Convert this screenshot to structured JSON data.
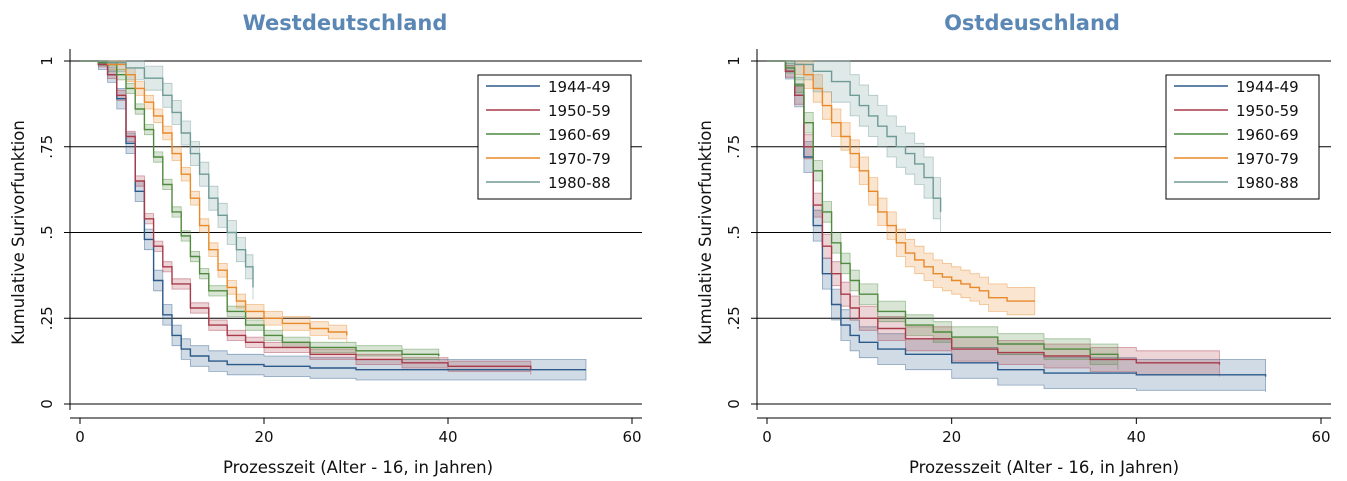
{
  "chart_data": [
    {
      "type": "line",
      "title": "Westdeutschland",
      "xlabel": "Prozesszeit (Alter - 16, in Jahren)",
      "ylabel": "Kumulative Surivorfunktion",
      "xlim": [
        0,
        60
      ],
      "ylim": [
        0,
        1
      ],
      "xticks": [
        "0",
        "20",
        "40",
        "60"
      ],
      "yticks": [
        "0",
        ".25",
        ".5",
        ".75",
        "1"
      ],
      "ytick_values": [
        0,
        0.25,
        0.5,
        0.75,
        1
      ],
      "xtick_values": [
        0,
        20,
        40,
        60
      ],
      "grid": "horizontal",
      "legend_position": "top-right",
      "series": [
        {
          "name": "1944-49",
          "color": "#2b5a8a",
          "ci_width": 0.03,
          "points": [
            [
              0,
              1
            ],
            [
              2,
              0.99
            ],
            [
              3,
              0.96
            ],
            [
              4,
              0.89
            ],
            [
              5,
              0.76
            ],
            [
              6,
              0.62
            ],
            [
              7,
              0.48
            ],
            [
              8,
              0.36
            ],
            [
              9,
              0.26
            ],
            [
              10,
              0.2
            ],
            [
              11,
              0.16
            ],
            [
              12,
              0.14
            ],
            [
              14,
              0.125
            ],
            [
              16,
              0.115
            ],
            [
              20,
              0.11
            ],
            [
              25,
              0.105
            ],
            [
              30,
              0.1
            ],
            [
              40,
              0.1
            ],
            [
              55,
              0.1
            ]
          ]
        },
        {
          "name": "1950-59",
          "color": "#a83a4a",
          "ci_width": 0.015,
          "points": [
            [
              0,
              1
            ],
            [
              2,
              0.99
            ],
            [
              3,
              0.96
            ],
            [
              4,
              0.9
            ],
            [
              5,
              0.78
            ],
            [
              6,
              0.65
            ],
            [
              7,
              0.54
            ],
            [
              8,
              0.46
            ],
            [
              9,
              0.4
            ],
            [
              10,
              0.35
            ],
            [
              12,
              0.28
            ],
            [
              14,
              0.23
            ],
            [
              16,
              0.2
            ],
            [
              18,
              0.18
            ],
            [
              20,
              0.165
            ],
            [
              25,
              0.145
            ],
            [
              30,
              0.13
            ],
            [
              35,
              0.12
            ],
            [
              40,
              0.11
            ],
            [
              49,
              0.1
            ]
          ]
        },
        {
          "name": "1960-69",
          "color": "#4f8a3f",
          "ci_width": 0.015,
          "points": [
            [
              0,
              1
            ],
            [
              2,
              0.995
            ],
            [
              4,
              0.96
            ],
            [
              5,
              0.92
            ],
            [
              6,
              0.86
            ],
            [
              7,
              0.8
            ],
            [
              8,
              0.72
            ],
            [
              9,
              0.64
            ],
            [
              10,
              0.56
            ],
            [
              11,
              0.49
            ],
            [
              12,
              0.43
            ],
            [
              13,
              0.38
            ],
            [
              14,
              0.33
            ],
            [
              16,
              0.27
            ],
            [
              18,
              0.23
            ],
            [
              20,
              0.2
            ],
            [
              22,
              0.18
            ],
            [
              25,
              0.165
            ],
            [
              30,
              0.155
            ],
            [
              35,
              0.145
            ],
            [
              39,
              0.14
            ]
          ]
        },
        {
          "name": "1970-79",
          "color": "#e8892a",
          "ci_width": 0.02,
          "points": [
            [
              0,
              1
            ],
            [
              3,
              0.99
            ],
            [
              5,
              0.96
            ],
            [
              6,
              0.92
            ],
            [
              7,
              0.88
            ],
            [
              8,
              0.84
            ],
            [
              9,
              0.79
            ],
            [
              10,
              0.73
            ],
            [
              11,
              0.67
            ],
            [
              12,
              0.6
            ],
            [
              13,
              0.52
            ],
            [
              14,
              0.45
            ],
            [
              15,
              0.39
            ],
            [
              16,
              0.34
            ],
            [
              17,
              0.3
            ],
            [
              18,
              0.27
            ],
            [
              20,
              0.25
            ],
            [
              22,
              0.235
            ],
            [
              25,
              0.22
            ],
            [
              27,
              0.21
            ],
            [
              29,
              0.2
            ]
          ]
        },
        {
          "name": "1980-88",
          "color": "#6f9a96",
          "ci_width": 0.035,
          "points": [
            [
              0,
              1
            ],
            [
              3,
              0.995
            ],
            [
              5,
              0.98
            ],
            [
              7,
              0.95
            ],
            [
              9,
              0.9
            ],
            [
              10,
              0.85
            ],
            [
              11,
              0.79
            ],
            [
              12,
              0.73
            ],
            [
              13,
              0.67
            ],
            [
              14,
              0.6
            ],
            [
              15,
              0.55
            ],
            [
              16,
              0.5
            ],
            [
              17,
              0.45
            ],
            [
              18,
              0.4
            ],
            [
              18.8,
              0.34
            ]
          ]
        }
      ]
    },
    {
      "type": "line",
      "title": "Ostdeuschland",
      "xlabel": "Prozesszeit (Alter - 16, in Jahren)",
      "ylabel": "Kumulative Surivorfunktion",
      "xlim": [
        0,
        60
      ],
      "ylim": [
        0,
        1
      ],
      "xticks": [
        "0",
        "20",
        "40",
        "60"
      ],
      "yticks": [
        "0",
        ".25",
        ".5",
        ".75",
        "1"
      ],
      "ytick_values": [
        0,
        0.25,
        0.5,
        0.75,
        1
      ],
      "xtick_values": [
        0,
        20,
        40,
        60
      ],
      "grid": "horizontal",
      "legend_position": "top-right",
      "series": [
        {
          "name": "1944-49",
          "color": "#2b5a8a",
          "ci_width": 0.045,
          "points": [
            [
              0,
              1
            ],
            [
              2,
              0.97
            ],
            [
              3,
              0.9
            ],
            [
              4,
              0.72
            ],
            [
              5,
              0.52
            ],
            [
              6,
              0.38
            ],
            [
              7,
              0.29
            ],
            [
              8,
              0.23
            ],
            [
              9,
              0.2
            ],
            [
              10,
              0.18
            ],
            [
              12,
              0.16
            ],
            [
              15,
              0.145
            ],
            [
              20,
              0.12
            ],
            [
              25,
              0.1
            ],
            [
              30,
              0.09
            ],
            [
              40,
              0.085
            ],
            [
              54,
              0.08
            ]
          ]
        },
        {
          "name": "1950-59",
          "color": "#a83a4a",
          "ci_width": 0.035,
          "points": [
            [
              0,
              1
            ],
            [
              2,
              0.97
            ],
            [
              3,
              0.9
            ],
            [
              4,
              0.75
            ],
            [
              5,
              0.58
            ],
            [
              6,
              0.46
            ],
            [
              7,
              0.38
            ],
            [
              8,
              0.32
            ],
            [
              9,
              0.28
            ],
            [
              10,
              0.25
            ],
            [
              12,
              0.22
            ],
            [
              15,
              0.19
            ],
            [
              20,
              0.16
            ],
            [
              25,
              0.15
            ],
            [
              30,
              0.14
            ],
            [
              35,
              0.13
            ],
            [
              40,
              0.12
            ],
            [
              49,
              0.115
            ]
          ]
        },
        {
          "name": "1960-69",
          "color": "#4f8a3f",
          "ci_width": 0.03,
          "points": [
            [
              0,
              1
            ],
            [
              2,
              0.98
            ],
            [
              3,
              0.93
            ],
            [
              4,
              0.82
            ],
            [
              5,
              0.68
            ],
            [
              6,
              0.56
            ],
            [
              7,
              0.47
            ],
            [
              8,
              0.41
            ],
            [
              9,
              0.36
            ],
            [
              10,
              0.32
            ],
            [
              12,
              0.27
            ],
            [
              15,
              0.23
            ],
            [
              18,
              0.21
            ],
            [
              20,
              0.195
            ],
            [
              25,
              0.175
            ],
            [
              30,
              0.16
            ],
            [
              35,
              0.145
            ],
            [
              38,
              0.13
            ]
          ]
        },
        {
          "name": "1970-79",
          "color": "#e8892a",
          "ci_width": 0.04,
          "points": [
            [
              0,
              1
            ],
            [
              3,
              0.99
            ],
            [
              4,
              0.96
            ],
            [
              5,
              0.92
            ],
            [
              6,
              0.87
            ],
            [
              7,
              0.82
            ],
            [
              8,
              0.78
            ],
            [
              9,
              0.73
            ],
            [
              10,
              0.68
            ],
            [
              11,
              0.62
            ],
            [
              12,
              0.56
            ],
            [
              13,
              0.52
            ],
            [
              14,
              0.47
            ],
            [
              15,
              0.44
            ],
            [
              16,
              0.42
            ],
            [
              17,
              0.4
            ],
            [
              18,
              0.38
            ],
            [
              19,
              0.37
            ],
            [
              20,
              0.36
            ],
            [
              21,
              0.35
            ],
            [
              22,
              0.34
            ],
            [
              23,
              0.33
            ],
            [
              24,
              0.31
            ],
            [
              26,
              0.3
            ],
            [
              29,
              0.3
            ]
          ]
        },
        {
          "name": "1980-88",
          "color": "#6f9a96",
          "ci_width": 0.06,
          "points": [
            [
              0,
              1
            ],
            [
              3,
              0.99
            ],
            [
              5,
              0.97
            ],
            [
              7,
              0.94
            ],
            [
              9,
              0.9
            ],
            [
              10,
              0.87
            ],
            [
              11,
              0.84
            ],
            [
              12,
              0.81
            ],
            [
              13,
              0.78
            ],
            [
              14,
              0.75
            ],
            [
              15,
              0.73
            ],
            [
              16,
              0.7
            ],
            [
              17,
              0.66
            ],
            [
              18,
              0.6
            ],
            [
              18.8,
              0.56
            ]
          ]
        }
      ]
    }
  ]
}
